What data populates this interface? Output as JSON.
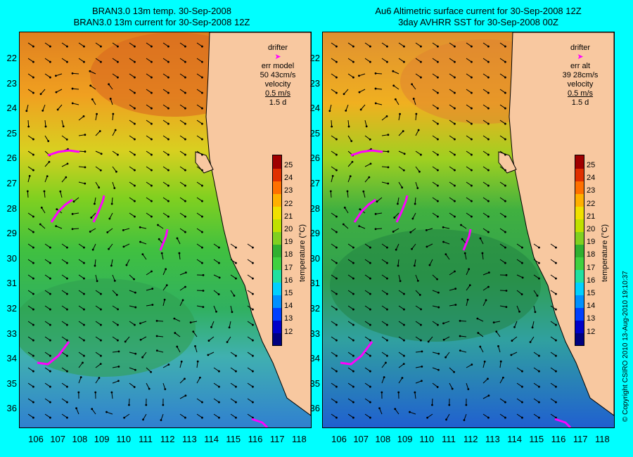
{
  "left_panel": {
    "title_line1": "BRAN3.0 13m temp. 30-Sep-2008",
    "title_line2": "BRAN3.0 13m current for 30-Sep-2008 12Z",
    "legend": {
      "drifter_label": "drifter",
      "err_label": "err model",
      "err_value": "50 43cm/s",
      "velocity_label": "velocity",
      "velocity_value": "0.5 m/s",
      "duration": "1.5 d"
    }
  },
  "right_panel": {
    "title_line1": "Au6 Altimetric surface current for 30-Sep-2008 12Z",
    "title_line2": "3day AVHRR SST for 30-Sep-2008 00Z",
    "legend": {
      "drifter_label": "drifter",
      "err_label": "err alt",
      "err_value": "39 28cm/s",
      "velocity_label": "velocity",
      "velocity_value": "0.5 m/s",
      "duration": "1.5 d"
    }
  },
  "axes": {
    "lat_ticks": [
      "22",
      "23",
      "24",
      "25",
      "26",
      "27",
      "28",
      "29",
      "30",
      "31",
      "32",
      "33",
      "34",
      "35",
      "36"
    ],
    "lon_ticks": [
      "106",
      "107",
      "108",
      "109",
      "110",
      "111",
      "112",
      "113",
      "114",
      "115",
      "116",
      "117",
      "118"
    ]
  },
  "colorbar": {
    "title": "temperature (°C)",
    "ticks": [
      "25",
      "24",
      "23",
      "22",
      "21",
      "20",
      "19",
      "18",
      "17",
      "16",
      "15",
      "14",
      "13",
      "12"
    ],
    "colors": [
      "#00007f",
      "#0000c8",
      "#0040ff",
      "#0090ff",
      "#00d0ff",
      "#20e0a0",
      "#40d040",
      "#30b030",
      "#80d020",
      "#c0e000",
      "#f0e000",
      "#ffb000",
      "#ff7000",
      "#e03000",
      "#a00000"
    ]
  },
  "copyright": "© Copyright CSIRO 2010  13-Aug-2010 19:10:37",
  "colors": {
    "background": "#00ffff",
    "land": "#f8c8a0",
    "drifter": "#ff00ff",
    "isobath": "#40e0e0"
  }
}
